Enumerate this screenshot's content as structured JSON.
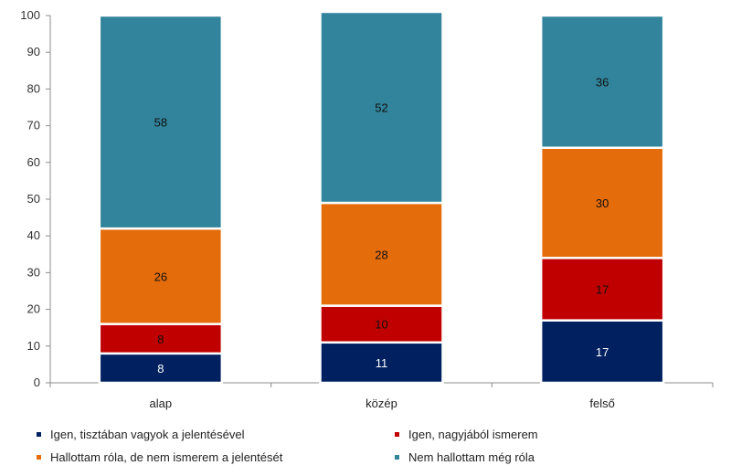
{
  "chart_data": {
    "type": "bar",
    "stacked": true,
    "categories": [
      "alap",
      "közép",
      "felső"
    ],
    "series": [
      {
        "name": "Igen, tisztában vagyok a jelentésével",
        "values": [
          8,
          11,
          17
        ],
        "color": "#002060"
      },
      {
        "name": "Igen, nagyjából ismerem",
        "values": [
          8,
          10,
          17
        ],
        "color": "#C00000"
      },
      {
        "name": "Hallottam róla, de nem ismerem a jelentését",
        "values": [
          26,
          28,
          30
        ],
        "color": "#E46C0A"
      },
      {
        "name": "Nem hallottam még róla",
        "values": [
          58,
          52,
          36
        ],
        "color": "#31849B"
      }
    ],
    "ylim": [
      0,
      100
    ],
    "yticks": [
      "0",
      "10",
      "20",
      "30",
      "40",
      "50",
      "60",
      "70",
      "80",
      "90",
      "100"
    ],
    "grid": false,
    "legend_position": "bottom"
  }
}
